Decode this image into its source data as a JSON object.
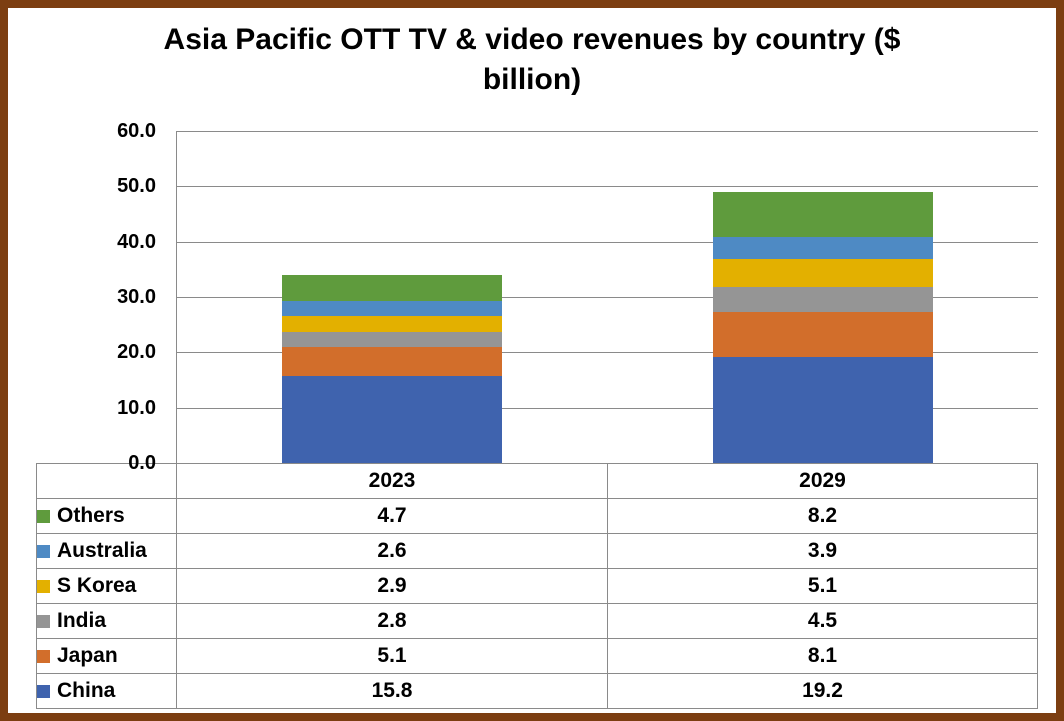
{
  "title": "Asia Pacific OTT TV & video revenues by country ($ billion)",
  "colors": {
    "frame_border": "#7C3E11",
    "grid_line": "#8A8A8A",
    "text": "#000000"
  },
  "chart_data": {
    "type": "bar",
    "stacked": true,
    "title": "Asia Pacific OTT TV & video revenues by country ($ billion)",
    "xlabel": "",
    "ylabel": "",
    "categories": [
      "2023",
      "2029"
    ],
    "series": [
      {
        "name": "China",
        "color": "#3F63AE",
        "values": [
          15.8,
          19.2
        ]
      },
      {
        "name": "Japan",
        "color": "#D26E2B",
        "values": [
          5.1,
          8.1
        ]
      },
      {
        "name": "India",
        "color": "#959595",
        "values": [
          2.8,
          4.5
        ]
      },
      {
        "name": "S Korea",
        "color": "#E3B000",
        "values": [
          2.9,
          5.1
        ]
      },
      {
        "name": "Australia",
        "color": "#4E8AC4",
        "values": [
          2.6,
          3.9
        ]
      },
      {
        "name": "Others",
        "color": "#5F9B3D",
        "values": [
          4.7,
          8.2
        ]
      }
    ],
    "totals": [
      33.9,
      49.0
    ],
    "ylim": [
      0,
      60
    ],
    "ytick_step": 10,
    "yticks": [
      "60.0",
      "50.0",
      "40.0",
      "30.0",
      "20.0",
      "10.0",
      "0.0"
    ],
    "grid": true,
    "legend_position": "data-table-left",
    "data_table": true
  }
}
